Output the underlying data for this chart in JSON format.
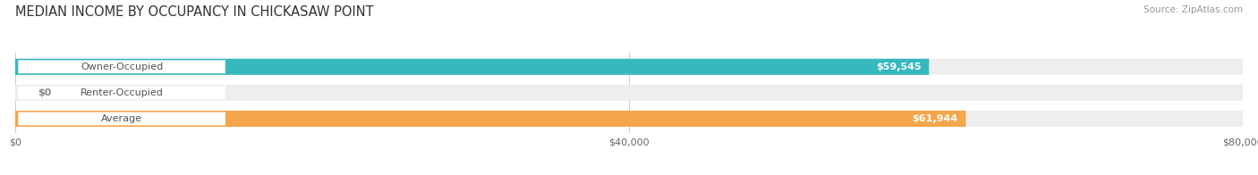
{
  "title": "MEDIAN INCOME BY OCCUPANCY IN CHICKASAW POINT",
  "source": "Source: ZipAtlas.com",
  "categories": [
    "Owner-Occupied",
    "Renter-Occupied",
    "Average"
  ],
  "values": [
    59545,
    0,
    61944
  ],
  "labels": [
    "$59,545",
    "$0",
    "$61,944"
  ],
  "bar_colors": [
    "#36b8be",
    "#c4a8d4",
    "#f5a54a"
  ],
  "bar_bg_colors": [
    "#eeeeee",
    "#eeeeee",
    "#eeeeee"
  ],
  "xlim": [
    0,
    80000
  ],
  "xticks": [
    0,
    40000,
    80000
  ],
  "xticklabels": [
    "$0",
    "$40,000",
    "$80,000"
  ],
  "title_fontsize": 10.5,
  "source_fontsize": 7.5,
  "bar_height": 0.62,
  "figsize": [
    14.06,
    1.96
  ],
  "dpi": 100,
  "background_color": "#ffffff",
  "label_color": "#ffffff",
  "grid_color": "#cccccc",
  "renter_label_color": "#888888"
}
